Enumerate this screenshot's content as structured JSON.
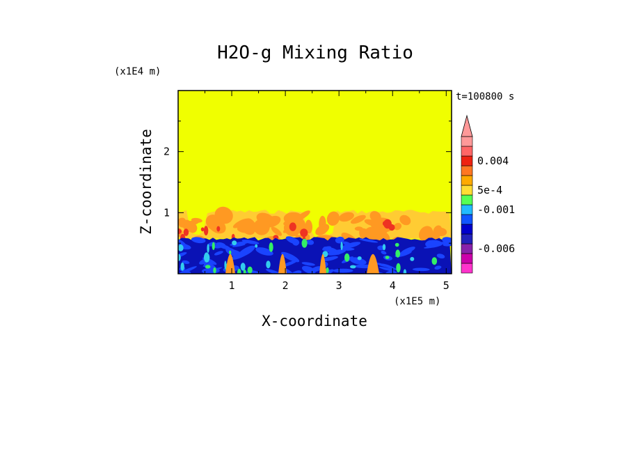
{
  "chart_data": {
    "type": "heatmap",
    "title": "H2O-g Mixing Ratio",
    "xlabel": "X-coordinate",
    "ylabel": "Z-coordinate",
    "x_unit": "(x1E5 m)",
    "y_unit": "(x1E4 m)",
    "time_label": "t=100800 s",
    "xlim": [
      0,
      5.1
    ],
    "ylim": [
      0,
      3.0
    ],
    "x_ticks": [
      1,
      2,
      3,
      4,
      5
    ],
    "x_tick_labels": [
      "1",
      "2",
      "3",
      "4",
      "5"
    ],
    "y_ticks": [
      1,
      2
    ],
    "y_tick_labels": [
      "1",
      "2"
    ],
    "field_regions": {
      "upper_uniform_top_z": 3.0,
      "turbulent_layer_top_z": 1.05,
      "boundary_layer_top_z": 0.6
    },
    "colorbar": {
      "colors": [
        "#ff33cc",
        "#cc00aa",
        "#8822aa",
        "#2222bb",
        "#0000cc",
        "#1155ff",
        "#22bbff",
        "#55ff55",
        "#ffdd33",
        "#ffaa00",
        "#ff7722",
        "#ee2211",
        "#ff6666",
        "#ff9999"
      ],
      "labels": [
        {
          "text": "0.004",
          "index": 11
        },
        {
          "text": "5e-4",
          "index": 8
        },
        {
          "text": "-0.001",
          "index": 6
        },
        {
          "text": "-0.006",
          "index": 2
        }
      ]
    }
  },
  "colors": {
    "background_field": "#f0ff00",
    "orange_1": "#ffcc33",
    "orange_2": "#ff9922",
    "red": "#ee3322",
    "dark_blue": "#0a12b5",
    "blue": "#1a44ff",
    "cyan": "#33ccee",
    "green": "#33ee66"
  }
}
